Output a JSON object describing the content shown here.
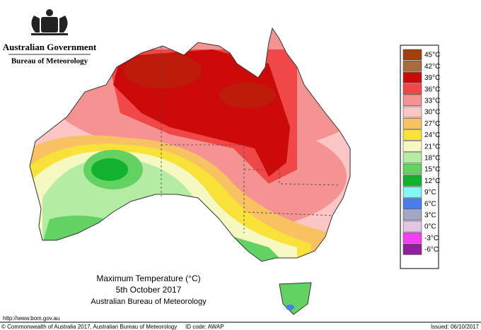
{
  "header": {
    "title": "Australian Government",
    "subtitle": "Bureau of Meteorology"
  },
  "legend": {
    "items": [
      {
        "label": "45°C",
        "color": "#a2400e"
      },
      {
        "label": "42°C",
        "color": "#a86c3c"
      },
      {
        "label": "39°C",
        "color": "#cc0a0a"
      },
      {
        "label": "36°C",
        "color": "#f04848"
      },
      {
        "label": "33°C",
        "color": "#f59292"
      },
      {
        "label": "30°C",
        "color": "#fcc6c6"
      },
      {
        "label": "27°C",
        "color": "#f8c262"
      },
      {
        "label": "24°C",
        "color": "#f8e23a"
      },
      {
        "label": "21°C",
        "color": "#f6f8c2"
      },
      {
        "label": "18°C",
        "color": "#b4eca4"
      },
      {
        "label": "15°C",
        "color": "#62d262"
      },
      {
        "label": "12°C",
        "color": "#12b22e"
      },
      {
        "label": "9°C",
        "color": "#86f4f4"
      },
      {
        "label": "6°C",
        "color": "#4a7cf0"
      },
      {
        "label": "3°C",
        "color": "#a4a6c4"
      },
      {
        "label": "0°C",
        "color": "#e4c6e4"
      },
      {
        "label": "-3°C",
        "color": "#f440f2"
      },
      {
        "label": "-6°C",
        "color": "#92209e"
      }
    ]
  },
  "map_title": {
    "line1": "Maximum Temperature (°C)",
    "line2": "5th October 2017",
    "line3": "Australian Bureau of Meteorology"
  },
  "footer": {
    "url": "http://www.bom.gov.au",
    "copyright": "© Commonwealth of Australia 2017, Australian Bureau of Meteorology",
    "id_code": "ID code: AWAP",
    "issued": "Issued: 06/10/2017"
  }
}
